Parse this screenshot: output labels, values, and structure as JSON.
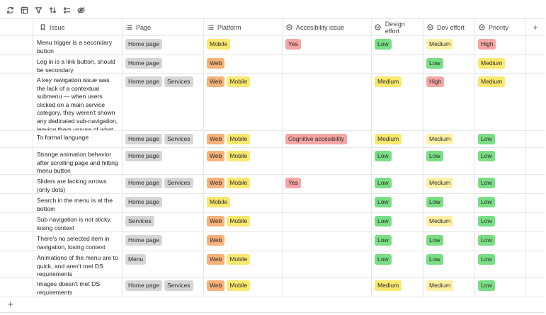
{
  "toolbar": {
    "buttons": [
      {
        "icon": "refresh-icon"
      },
      {
        "icon": "layout-icon"
      },
      {
        "icon": "filter-icon"
      },
      {
        "icon": "sort-icon"
      },
      {
        "icon": "group-icon"
      },
      {
        "icon": "hide-fields-icon"
      }
    ]
  },
  "columns": {
    "issue": "Issue",
    "page": "Page",
    "platform": "Platform",
    "accessibility": "Accesibility issue",
    "design_effort": "Design effort",
    "dev_effort": "Dev effort",
    "priority": "Priority",
    "add": "+"
  },
  "colors": {
    "grey": "#d6d6d6",
    "orange": "#f7b27a",
    "yellow": "#fbe86f",
    "light_yellow": "#fdf1a6",
    "red": "#f5a5a5",
    "green": "#79de84"
  },
  "rows": [
    {
      "issue": "Menu trigger is a secondary button",
      "page": [
        "Home page"
      ],
      "platform": [
        "Mobile"
      ],
      "accessibility": [
        "Yes"
      ],
      "design_effort": "Low",
      "dev_effort": "Medium",
      "priority": "High"
    },
    {
      "issue": "Log in is a link button, should be secondary",
      "page": [
        "Home page"
      ],
      "platform": [
        "Web"
      ],
      "accessibility": [],
      "design_effort": "",
      "dev_effort": "Low",
      "priority": "Medium"
    },
    {
      "issue": "A key navigation issue was the lack of a contextual submenu — when users clicked on a main service category, they weren't shown any dedicated sub-navigation, leaving them unsure of what to do next.",
      "page": [
        "Home page",
        "Services"
      ],
      "platform": [
        "Web",
        "Mobile"
      ],
      "accessibility": [],
      "design_effort": "Medium",
      "dev_effort": "High",
      "priority": "Medium"
    },
    {
      "issue": "To formal language",
      "page": [
        "Home page",
        "Services"
      ],
      "platform": [
        "Web",
        "Mobile"
      ],
      "accessibility": [
        "Cognitive accesibility"
      ],
      "design_effort": "Medium",
      "dev_effort": "Medium",
      "priority": "Low"
    },
    {
      "issue": "Strange animation behavior after scrolling page and hitting menu button",
      "page": [
        "Home page"
      ],
      "platform": [
        "Web",
        "Mobile"
      ],
      "accessibility": [],
      "design_effort": "Low",
      "dev_effort": "Low",
      "priority": "Low"
    },
    {
      "issue": "Sliders are lacking arrows (only dots)",
      "page": [
        "Home page",
        "Services"
      ],
      "platform": [
        "Web",
        "Mobile"
      ],
      "accessibility": [
        "Yes"
      ],
      "design_effort": "Low",
      "dev_effort": "Medium",
      "priority": "Low"
    },
    {
      "issue": "Search in the menu is at the bottom",
      "page": [
        "Home page"
      ],
      "platform": [
        "Mobile"
      ],
      "accessibility": [],
      "design_effort": "Low",
      "dev_effort": "Low",
      "priority": "Low"
    },
    {
      "issue": "Sub navigation is not sticky, losing context",
      "page": [
        "Services"
      ],
      "platform": [
        "Web",
        "Mobile"
      ],
      "accessibility": [],
      "design_effort": "Low",
      "dev_effort": "Medium",
      "priority": "Low"
    },
    {
      "issue": "There's no selected item in navigation, losing context",
      "page": [
        "Home page"
      ],
      "platform": [
        "Web"
      ],
      "accessibility": [],
      "design_effort": "Low",
      "dev_effort": "Low",
      "priority": "Low"
    },
    {
      "issue": "Animations of the menu are to quick, and aren't met DS requirements",
      "page": [
        "Menu"
      ],
      "platform": [
        "Web",
        "Mobile"
      ],
      "accessibility": [],
      "design_effort": "Low",
      "dev_effort": "Low",
      "priority": "Low"
    },
    {
      "issue": "Images doesn't met DS requirements",
      "page": [
        "Home page",
        "Services"
      ],
      "platform": [
        "Web",
        "Mobile"
      ],
      "accessibility": [],
      "design_effort": "Medium",
      "dev_effort": "Medium",
      "priority": "Low"
    }
  ],
  "footer": {
    "add_row": "+"
  }
}
